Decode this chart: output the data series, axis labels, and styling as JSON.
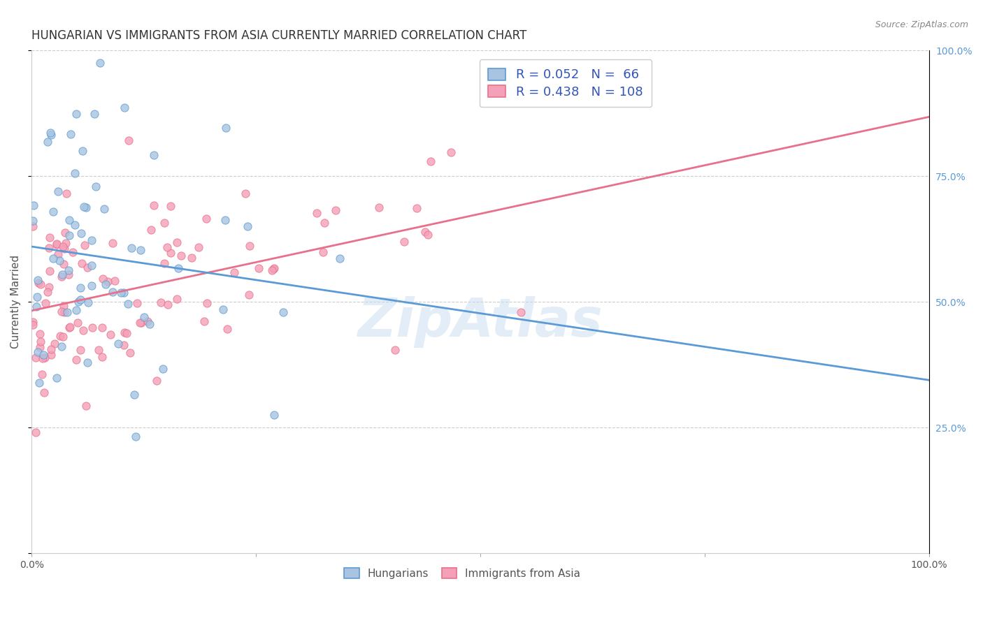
{
  "title": "HUNGARIAN VS IMMIGRANTS FROM ASIA CURRENTLY MARRIED CORRELATION CHART",
  "source": "Source: ZipAtlas.com",
  "xlabel": "",
  "ylabel": "Currently Married",
  "xmin": 0.0,
  "xmax": 1.0,
  "ymin": 0.0,
  "ymax": 1.0,
  "hungarian_R": 0.052,
  "hungarian_N": 66,
  "asian_R": 0.438,
  "asian_N": 108,
  "hungarian_color": "#a8c4e0",
  "asian_color": "#f4a0b8",
  "hungarian_line_color": "#5b9bd5",
  "asian_line_color": "#e8708a",
  "legend_labels": [
    "Hungarians",
    "Immigrants from Asia"
  ],
  "background_color": "#ffffff",
  "title_fontsize": 12,
  "label_fontsize": 11,
  "tick_fontsize": 10,
  "yticks": [
    0.0,
    0.25,
    0.5,
    0.75,
    1.0
  ],
  "xticks": [
    0.0,
    0.25,
    0.5,
    0.75,
    1.0
  ],
  "xtick_labels": [
    "0.0%",
    "",
    "",
    "",
    "100.0%"
  ],
  "right_ytick_labels": [
    "",
    "25.0%",
    "50.0%",
    "75.0%",
    "100.0%"
  ],
  "watermark": "ZipAtlas",
  "hungarian_seed": 7,
  "asian_seed": 13
}
